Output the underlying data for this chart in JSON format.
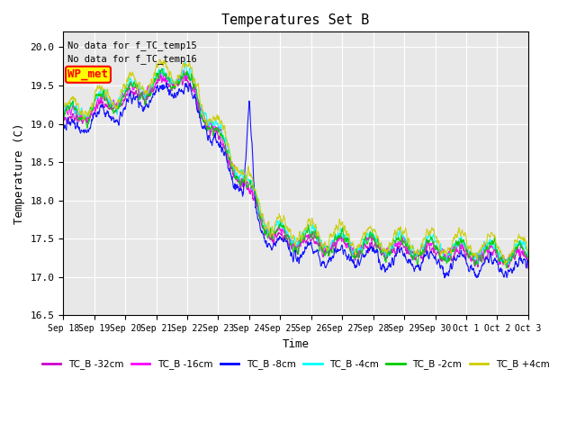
{
  "title": "Temperatures Set B",
  "ylabel": "Temperature (C)",
  "xlabel": "Time",
  "ylim": [
    16.5,
    20.2
  ],
  "annotations": [
    "No data for f_TC_temp15",
    "No data for f_TC_temp16"
  ],
  "wp_met_label": "WP_met",
  "wp_met_color": "#ff0000",
  "wp_met_bg": "#ffff00",
  "background_color": "#e8e8e8",
  "series": [
    {
      "label": "TC_B -32cm",
      "color": "#cc00cc"
    },
    {
      "label": "TC_B -16cm",
      "color": "#ff00ff"
    },
    {
      "label": "TC_B -8cm",
      "color": "#0000ff"
    },
    {
      "label": "TC_B -4cm",
      "color": "#00ffff"
    },
    {
      "label": "TC_B -2cm",
      "color": "#00cc00"
    },
    {
      "label": "TC_B +4cm",
      "color": "#cccc00"
    }
  ],
  "xtick_labels": [
    "Sep 18",
    "Sep 19",
    "Sep 20",
    "Sep 21",
    "Sep 22",
    "Sep 23",
    "Sep 24",
    "Sep 25",
    "Sep 26",
    "Sep 27",
    "Sep 28",
    "Sep 29",
    "Sep 30",
    "Oct 1",
    "Oct 2",
    "Oct 3"
  ],
  "grid_color": "#ffffff",
  "font_family": "monospace"
}
